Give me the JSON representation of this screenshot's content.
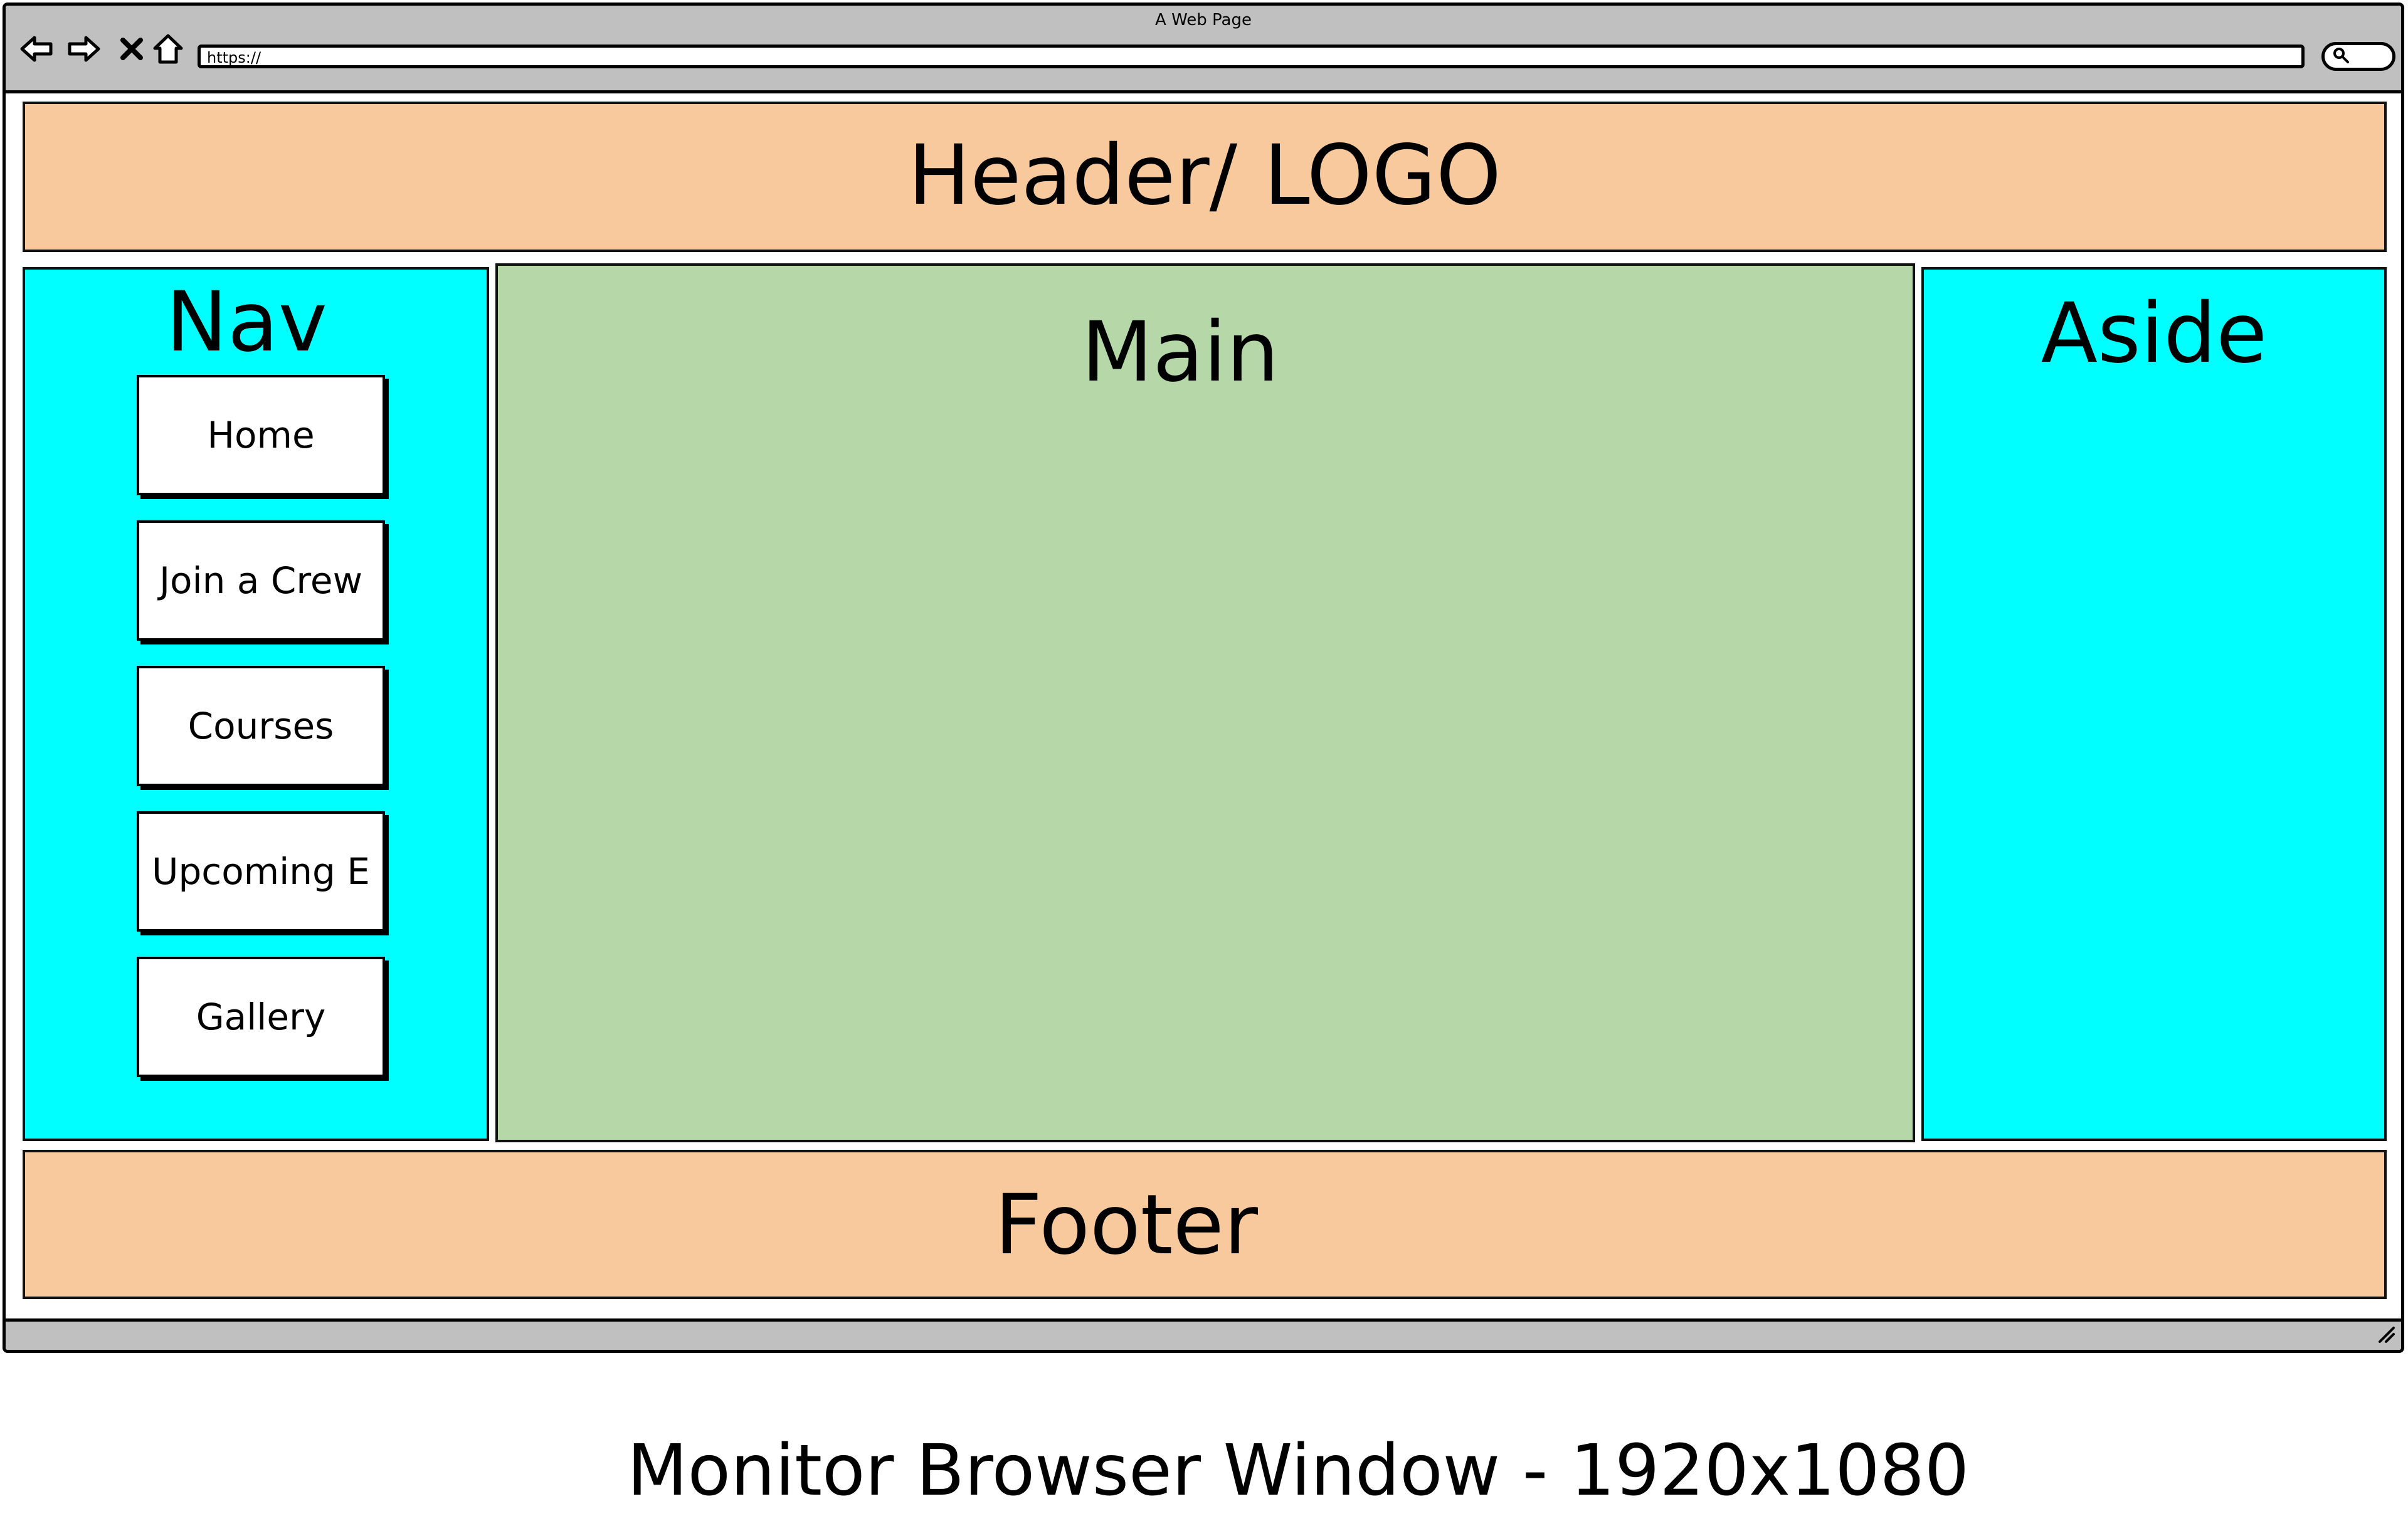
{
  "browser": {
    "window_title": "A Web Page",
    "url": "https://",
    "back_icon": "arrow-left-icon",
    "forward_icon": "arrow-right-icon",
    "stop_icon": "close-icon",
    "home_icon": "home-icon",
    "search_icon": "search-icon",
    "resize_icon": "resize-grip-icon"
  },
  "layout": {
    "header_label": "Header/ LOGO",
    "nav_label": "Nav",
    "main_label": "Main",
    "aside_label": "Aside",
    "footer_label": "Footer"
  },
  "nav": {
    "items": [
      {
        "label": "Home"
      },
      {
        "label": "Join a Crew"
      },
      {
        "label": "Courses"
      },
      {
        "label": "Upcoming E"
      },
      {
        "label": "Gallery"
      }
    ]
  },
  "caption": "Monitor Browser Window - 1920x1080",
  "colors": {
    "header_footer": "#f8c99c",
    "nav_aside": "#00ffff",
    "main": "#b6d7a8",
    "chrome": "#c0c0c0"
  }
}
